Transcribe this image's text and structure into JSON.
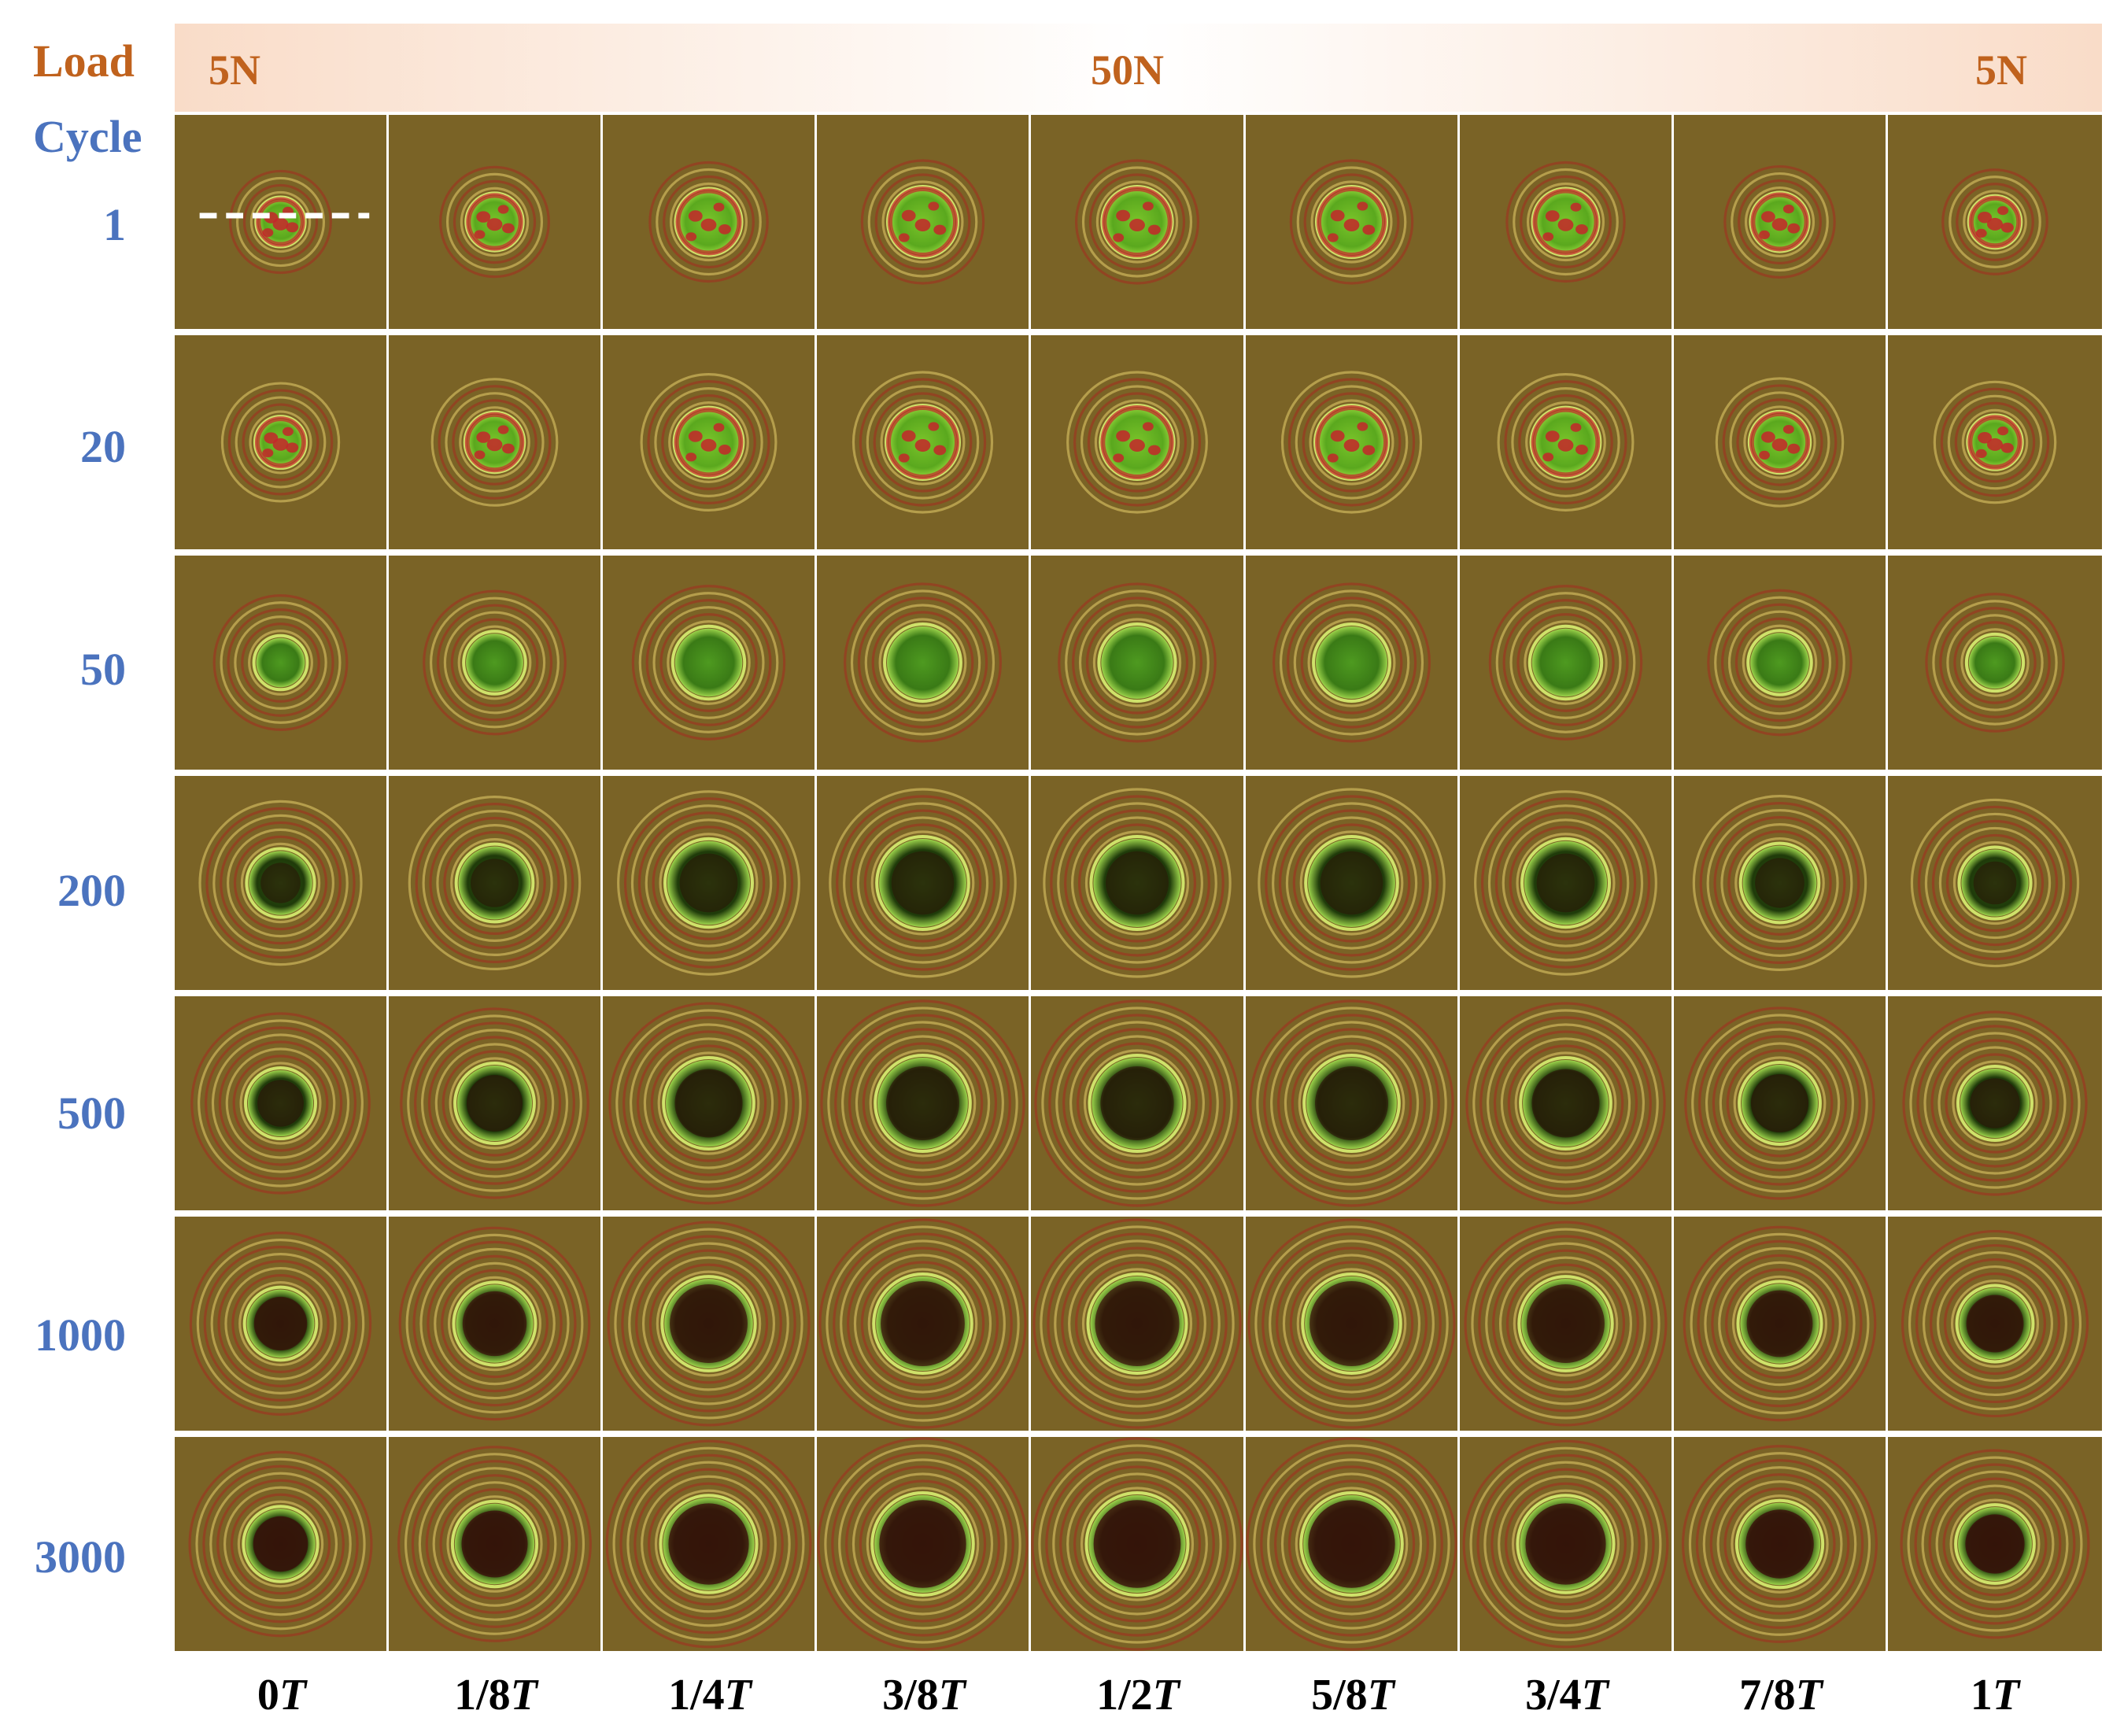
{
  "header": {
    "load_label": "Load",
    "cycle_label": "Cycle",
    "load_values": [
      "5N",
      "50N",
      "5N"
    ]
  },
  "cycles": [
    "1",
    "20",
    "50",
    "200",
    "500",
    "1000",
    "3000"
  ],
  "phases": [
    {
      "num": "0",
      "unit": "T"
    },
    {
      "num": "1/8",
      "unit": "T"
    },
    {
      "num": "1/4",
      "unit": "T"
    },
    {
      "num": "3/8",
      "unit": "T"
    },
    {
      "num": "1/2",
      "unit": "T"
    },
    {
      "num": "5/8",
      "unit": "T"
    },
    {
      "num": "3/4",
      "unit": "T"
    },
    {
      "num": "7/8",
      "unit": "T"
    },
    {
      "num": "1",
      "unit": "T"
    }
  ],
  "colors": {
    "load_text": "#c0621d",
    "cycle_text": "#4b73be",
    "background": "#7a6326",
    "contact_green": "#7ac42a",
    "contact_red": "#c4262a",
    "dark_core": "#1b2a08"
  },
  "annotations": {
    "dashed_line": "white dashed line across contact in first cell"
  }
}
